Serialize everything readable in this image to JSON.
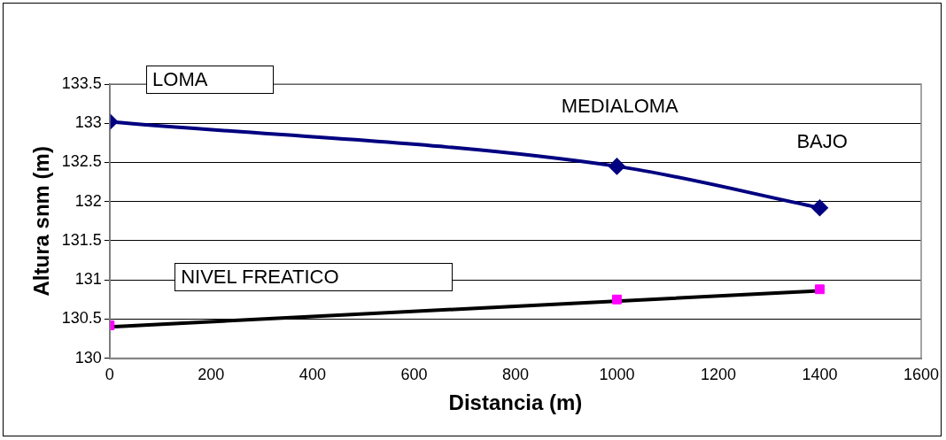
{
  "chart_data": {
    "type": "line",
    "xlabel": "Distancia (m)",
    "ylabel": "Altura snm (m)",
    "xlim": [
      0,
      1600
    ],
    "xticks": [
      0,
      200,
      400,
      600,
      800,
      1000,
      1200,
      1400,
      1600
    ],
    "ylim": [
      130,
      133.5
    ],
    "yticks": [
      130,
      130.5,
      131,
      131.5,
      132,
      132.5,
      133,
      133.5
    ],
    "grid": "y",
    "legend": false,
    "series": [
      {
        "color": "#000080",
        "marker": "diamond",
        "x": [
          0,
          1000,
          1400
        ],
        "values": [
          133.02,
          132.45,
          131.92
        ]
      },
      {
        "type": "scatter",
        "color": "#ff00ff",
        "marker": "square",
        "x": [
          0,
          1000,
          1400
        ],
        "values": [
          130.42,
          130.75,
          130.88
        ]
      },
      {
        "color": "#000000",
        "marker": "none",
        "x": [
          0,
          1400
        ],
        "values": [
          130.4,
          130.86
        ]
      }
    ],
    "annotations": [
      "LOMA",
      "MEDIALOMA",
      "BAJO",
      "NIVEL FREATICO"
    ]
  }
}
